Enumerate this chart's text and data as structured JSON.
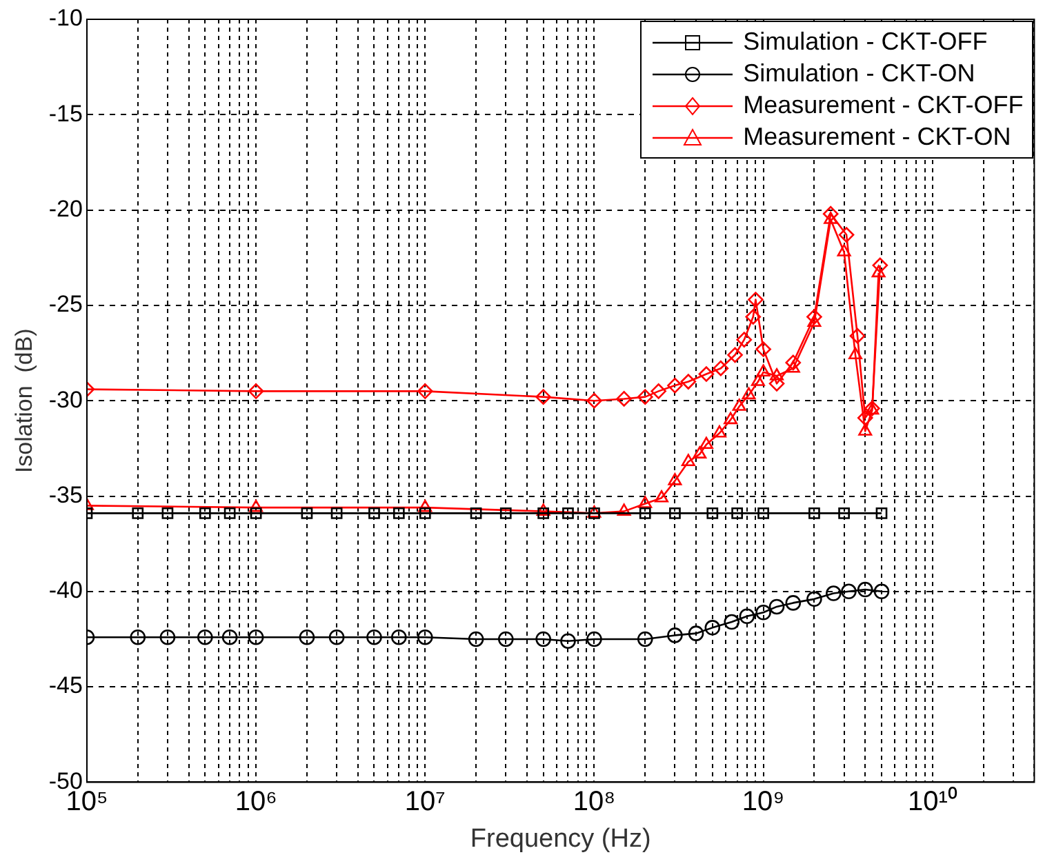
{
  "chart_data": {
    "type": "line",
    "xlabel": "Frequency (Hz)",
    "ylabel": "Isolation  (dB)",
    "log": "x",
    "grid": true,
    "legend": "top right",
    "line_style": "solid",
    "xlim": [
      100000,
      40000000000
    ],
    "ylim": [
      -50,
      -10
    ],
    "xticks": [
      {
        "value": 100000,
        "label": "10⁵"
      },
      {
        "value": 200000,
        "label": null
      },
      {
        "value": 300000,
        "label": null
      },
      {
        "value": 400000,
        "label": null
      },
      {
        "value": 500000,
        "label": null
      },
      {
        "value": 600000,
        "label": null
      },
      {
        "value": 700000,
        "label": null
      },
      {
        "value": 800000,
        "label": null
      },
      {
        "value": 900000,
        "label": null
      },
      {
        "value": 1000000,
        "label": "10⁶"
      },
      {
        "value": 2000000,
        "label": null
      },
      {
        "value": 3000000,
        "label": null
      },
      {
        "value": 4000000,
        "label": null
      },
      {
        "value": 5000000,
        "label": null
      },
      {
        "value": 6000000,
        "label": null
      },
      {
        "value": 7000000,
        "label": null
      },
      {
        "value": 8000000,
        "label": null
      },
      {
        "value": 9000000,
        "label": null
      },
      {
        "value": 10000000,
        "label": "10⁷"
      },
      {
        "value": 20000000,
        "label": null
      },
      {
        "value": 30000000,
        "label": null
      },
      {
        "value": 40000000,
        "label": null
      },
      {
        "value": 50000000,
        "label": null
      },
      {
        "value": 60000000,
        "label": null
      },
      {
        "value": 70000000,
        "label": null
      },
      {
        "value": 80000000,
        "label": null
      },
      {
        "value": 90000000,
        "label": null
      },
      {
        "value": 100000000,
        "label": "10⁸"
      },
      {
        "value": 200000000,
        "label": null
      },
      {
        "value": 300000000,
        "label": null
      },
      {
        "value": 400000000,
        "label": null
      },
      {
        "value": 500000000,
        "label": null
      },
      {
        "value": 600000000,
        "label": null
      },
      {
        "value": 700000000,
        "label": null
      },
      {
        "value": 800000000,
        "label": null
      },
      {
        "value": 900000000,
        "label": null
      },
      {
        "value": 1000000000,
        "label": "10⁹"
      },
      {
        "value": 2000000000,
        "label": null
      },
      {
        "value": 3000000000,
        "label": null
      },
      {
        "value": 4000000000,
        "label": null
      },
      {
        "value": 5000000000,
        "label": null
      },
      {
        "value": 6000000000,
        "label": null
      },
      {
        "value": 7000000000,
        "label": null
      },
      {
        "value": 8000000000,
        "label": null
      },
      {
        "value": 9000000000,
        "label": null
      },
      {
        "value": 10000000000,
        "label": "10¹⁰"
      },
      {
        "value": 20000000000,
        "label": null
      },
      {
        "value": 30000000000,
        "label": null
      },
      {
        "value": 40000000000,
        "label": null
      }
    ],
    "yticks": [
      -50,
      -45,
      -40,
      -35,
      -30,
      -25,
      -20,
      -15,
      -10
    ],
    "series": [
      {
        "name": "Simulation - CKT-OFF",
        "color": "#000000",
        "marker": "square",
        "x": [
          100000,
          200000,
          300000,
          500000,
          700000,
          1000000,
          2000000,
          3000000,
          5000000,
          7000000,
          10000000,
          20000000,
          30000000,
          50000000,
          70000000,
          100000000,
          200000000,
          300000000,
          500000000,
          700000000,
          1000000000,
          2000000000,
          3000000000,
          5000000000
        ],
        "values": [
          -35.9,
          -35.9,
          -35.9,
          -35.9,
          -35.9,
          -35.9,
          -35.9,
          -35.9,
          -35.9,
          -35.9,
          -35.9,
          -35.9,
          -35.9,
          -35.9,
          -35.9,
          -35.9,
          -35.9,
          -35.9,
          -35.9,
          -35.9,
          -35.9,
          -35.9,
          -35.9,
          -35.9
        ]
      },
      {
        "name": "Simulation - CKT-ON",
        "color": "#000000",
        "marker": "circle",
        "x": [
          100000,
          200000,
          300000,
          500000,
          700000,
          1000000,
          2000000,
          3000000,
          5000000,
          7000000,
          10000000,
          20000000,
          30000000,
          50000000,
          70000000,
          100000000,
          200000000,
          300000000,
          400000000,
          500000000,
          650000000,
          800000000,
          1000000000,
          1200000000,
          1500000000,
          2000000000,
          2600000000,
          3200000000,
          4000000000,
          5000000000
        ],
        "values": [
          -42.4,
          -42.4,
          -42.4,
          -42.4,
          -42.4,
          -42.4,
          -42.4,
          -42.4,
          -42.4,
          -42.4,
          -42.4,
          -42.5,
          -42.5,
          -42.5,
          -42.6,
          -42.5,
          -42.5,
          -42.3,
          -42.2,
          -41.9,
          -41.6,
          -41.3,
          -41.1,
          -40.8,
          -40.6,
          -40.4,
          -40.1,
          -40.0,
          -39.9,
          -40.0
        ]
      },
      {
        "name": "Measurement - CKT-OFF",
        "color": "#ff0000",
        "marker": "diamond",
        "x": [
          100000,
          1000000,
          10000000,
          50000000,
          100000000,
          150000000,
          200000000,
          240000000,
          300000000,
          360000000,
          460000000,
          560000000,
          680000000,
          770000000,
          870000000,
          900000000,
          1000000000,
          1200000000,
          1500000000,
          2000000000,
          2500000000,
          3100000000,
          3600000000,
          4000000000,
          4400000000,
          4900000000
        ],
        "values": [
          -29.4,
          -29.5,
          -29.5,
          -29.8,
          -30.0,
          -29.9,
          -29.8,
          -29.5,
          -29.2,
          -29.0,
          -28.6,
          -28.3,
          -27.6,
          -26.8,
          -25.6,
          -24.7,
          -27.3,
          -29.1,
          -28.0,
          -25.6,
          -20.2,
          -21.3,
          -26.6,
          -30.9,
          -30.4,
          -22.9
        ]
      },
      {
        "name": "Measurement - CKT-ON",
        "color": "#ff0000",
        "marker": "triangle",
        "x": [
          100000,
          1000000,
          10000000,
          50000000,
          100000000,
          150000000,
          200000000,
          250000000,
          300000000,
          360000000,
          420000000,
          460000000,
          550000000,
          640000000,
          720000000,
          820000000,
          930000000,
          1000000000,
          1200000000,
          1500000000,
          2000000000,
          2500000000,
          3000000000,
          3500000000,
          4000000000,
          4400000000,
          4800000000
        ],
        "values": [
          -35.5,
          -35.6,
          -35.6,
          -35.8,
          -35.9,
          -35.8,
          -35.4,
          -35.1,
          -34.2,
          -33.2,
          -32.8,
          -32.3,
          -31.7,
          -31.0,
          -30.3,
          -29.7,
          -29.0,
          -28.5,
          -28.7,
          -28.3,
          -25.9,
          -20.5,
          -22.2,
          -27.6,
          -31.6,
          -30.5,
          -23.3
        ]
      }
    ]
  }
}
